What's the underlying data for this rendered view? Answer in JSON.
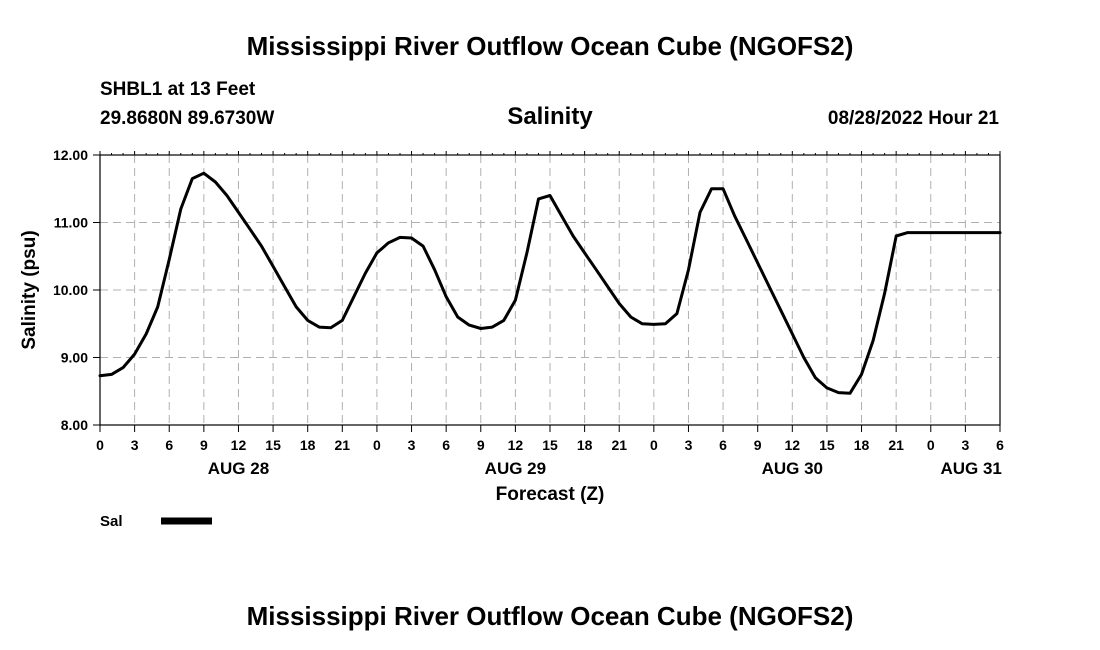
{
  "header": {
    "title": "Mississippi River Outflow Ocean Cube (NGOFS2)",
    "station": "SHBL1 at 13 Feet",
    "coords": "29.8680N  89.6730W",
    "variable": "Salinity",
    "timestamp": "08/28/2022 Hour 21",
    "footer_title": "Mississippi River Outflow Ocean Cube (NGOFS2)"
  },
  "colors": {
    "line": "#000000",
    "grid": "#b0b0b0",
    "background": "#ffffff"
  },
  "chart_data": {
    "type": "line",
    "title": "Salinity",
    "xlabel": "Forecast (Z)",
    "ylabel": "Salinity (psu)",
    "xlim": [
      0,
      78
    ],
    "ylim": [
      8.0,
      12.0
    ],
    "grid": true,
    "legend_position": "bottom-left",
    "y_ticks": [
      "8.00",
      "9.00",
      "10.00",
      "11.00",
      "12.00"
    ],
    "y_tick_values": [
      8,
      9,
      10,
      11,
      12
    ],
    "x_tick_labels": [
      "0",
      "3",
      "6",
      "9",
      "12",
      "15",
      "18",
      "21",
      "0",
      "3",
      "6",
      "9",
      "12",
      "15",
      "18",
      "21",
      "0",
      "3",
      "6",
      "9",
      "12",
      "15",
      "18",
      "21",
      "0",
      "3",
      "6"
    ],
    "x_tick_hours": [
      0,
      3,
      6,
      9,
      12,
      15,
      18,
      21,
      24,
      27,
      30,
      33,
      36,
      39,
      42,
      45,
      48,
      51,
      54,
      57,
      60,
      63,
      66,
      69,
      72,
      75,
      78
    ],
    "date_labels": [
      {
        "text": "AUG 28",
        "hour": 12
      },
      {
        "text": "AUG 29",
        "hour": 36
      },
      {
        "text": "AUG 30",
        "hour": 60
      },
      {
        "text": "AUG 31",
        "hour": 75.5
      }
    ],
    "series": [
      {
        "name": "Sal",
        "x": [
          0,
          1,
          2,
          3,
          4,
          5,
          6,
          7,
          8,
          9,
          10,
          11,
          12,
          13,
          14,
          15,
          16,
          17,
          18,
          19,
          20,
          21,
          22,
          23,
          24,
          25,
          26,
          27,
          28,
          29,
          30,
          31,
          32,
          33,
          34,
          35,
          36,
          37,
          38,
          39,
          40,
          41,
          42,
          43,
          44,
          45,
          46,
          47,
          48,
          49,
          50,
          51,
          52,
          53,
          54,
          55,
          56,
          57,
          58,
          59,
          60,
          61,
          62,
          63,
          64,
          65,
          66,
          67,
          68,
          69,
          70,
          71,
          72,
          73,
          74,
          75,
          76,
          77,
          78
        ],
        "values": [
          8.73,
          8.75,
          8.85,
          9.05,
          9.35,
          9.75,
          10.45,
          11.2,
          11.65,
          11.73,
          11.6,
          11.4,
          11.15,
          10.9,
          10.65,
          10.35,
          10.05,
          9.75,
          9.55,
          9.45,
          9.44,
          9.55,
          9.9,
          10.25,
          10.55,
          10.7,
          10.78,
          10.77,
          10.65,
          10.3,
          9.9,
          9.6,
          9.48,
          9.43,
          9.45,
          9.55,
          9.85,
          10.55,
          11.35,
          11.4,
          11.1,
          10.8,
          10.55,
          10.3,
          10.05,
          9.8,
          9.6,
          9.5,
          9.49,
          9.5,
          9.65,
          10.3,
          11.15,
          11.5,
          11.5,
          11.1,
          10.75,
          10.4,
          10.05,
          9.7,
          9.35,
          9.0,
          8.7,
          8.55,
          8.48,
          8.47,
          8.75,
          9.25,
          9.95,
          10.8,
          10.85,
          10.85,
          10.85,
          10.85,
          10.85,
          10.85,
          10.85,
          10.85,
          10.85
        ]
      }
    ]
  }
}
